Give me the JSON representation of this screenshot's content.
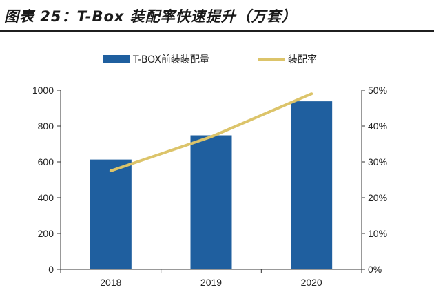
{
  "title": "图表 25：T-Box 装配率快速提升（万套）",
  "colors": {
    "bar": "#1f5f9f",
    "line": "#dcc46a",
    "axis": "#333333",
    "background": "#ffffff"
  },
  "legend": {
    "bar_label": "T-BOX前装装配量",
    "line_label": "装配率",
    "placement": "top-center"
  },
  "chart_data": {
    "type": "bar+line",
    "categories": [
      "2018",
      "2019",
      "2020"
    ],
    "series": [
      {
        "name": "T-BOX前装装配量",
        "type": "bar",
        "axis": "left",
        "values": [
          613,
          748,
          938
        ]
      },
      {
        "name": "装配率",
        "type": "line",
        "axis": "right",
        "values": [
          27.5,
          37,
          49
        ]
      }
    ],
    "ylim": [
      0,
      1000
    ],
    "y_ticks": [
      "0",
      "200",
      "400",
      "600",
      "800",
      "1000"
    ],
    "y2lim": [
      0,
      50
    ],
    "y2_ticks": [
      "0%",
      "10%",
      "20%",
      "30%",
      "40%",
      "50%"
    ],
    "grid": false
  }
}
